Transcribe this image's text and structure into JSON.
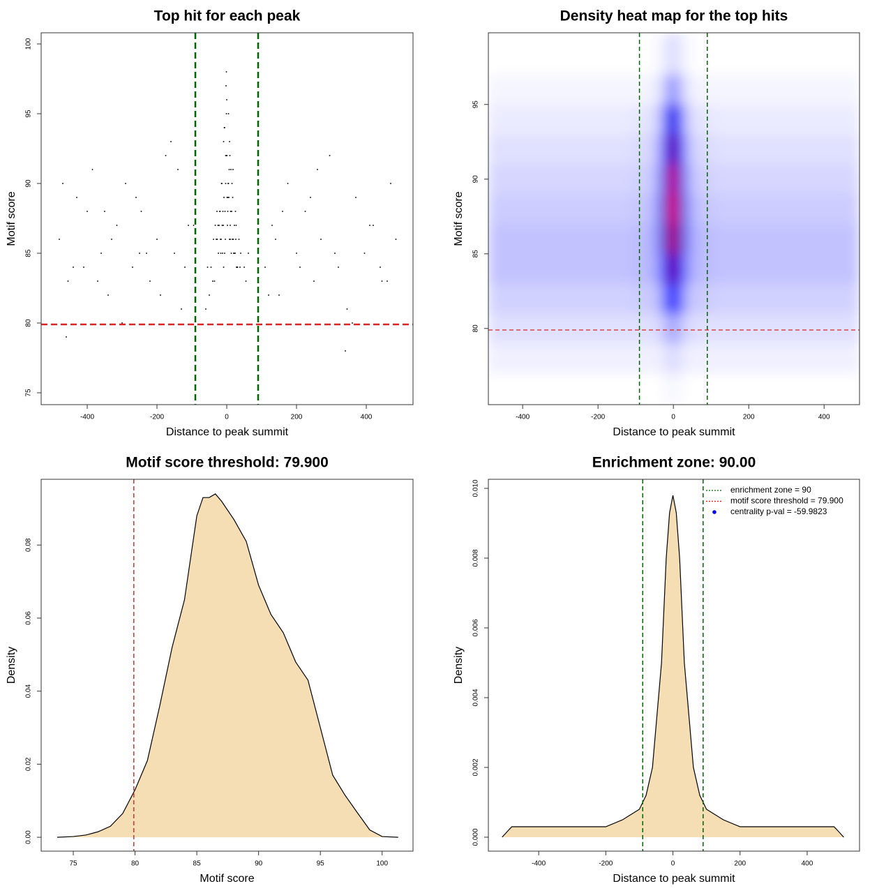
{
  "chart_data": [
    {
      "type": "scatter",
      "title": "Top hit for each peak",
      "x_label": "Distance to peak summit",
      "y_label": "Motif score",
      "color": "#000000",
      "x": [
        -480,
        -455,
        -430,
        -410,
        -385,
        -360,
        -340,
        -315,
        -290,
        -270,
        -245,
        -220,
        -200,
        -175,
        -150,
        -130,
        -110,
        -470,
        -440,
        -400,
        -370,
        -330,
        -300,
        -260,
        -230,
        -190,
        -160,
        -120,
        -95,
        -460,
        -350,
        -250,
        -140,
        110,
        130,
        150,
        175,
        200,
        225,
        250,
        270,
        295,
        320,
        345,
        370,
        395,
        420,
        445,
        470,
        485,
        120,
        160,
        210,
        260,
        310,
        360,
        410,
        460,
        140,
        240,
        340,
        440,
        -5,
        10,
        -15,
        20,
        0,
        -25,
        30,
        -8,
        12,
        -35,
        5,
        -18,
        25,
        -2,
        40,
        -45,
        15,
        -10,
        8,
        -30,
        3,
        -12,
        18,
        -22,
        28,
        -6,
        0,
        35,
        -40,
        14,
        -3,
        22,
        -17,
        9,
        -27,
        6,
        -50,
        50,
        -1,
        11,
        2,
        -9,
        16,
        -14,
        24,
        -20,
        7,
        -4,
        31,
        -33,
        1,
        13,
        -11,
        19,
        -7,
        4,
        -24,
        27,
        -16,
        0,
        55,
        -55,
        -60,
        62,
        -38,
        38,
        -28,
        17,
        -13,
        21,
        -19,
        26,
        5,
        -6,
        10,
        -1,
        3,
        -3,
        8,
        -9
      ],
      "values": [
        86,
        83,
        89,
        84,
        91,
        85,
        82,
        87,
        90,
        84,
        88,
        83,
        86,
        92,
        85,
        81,
        87,
        90,
        84,
        88,
        83,
        86,
        80,
        89,
        85,
        82,
        93,
        84,
        87,
        79,
        88,
        85,
        91,
        84,
        87,
        82,
        90,
        85,
        88,
        83,
        86,
        92,
        84,
        81,
        89,
        85,
        87,
        83,
        90,
        86,
        82,
        88,
        84,
        91,
        85,
        80,
        87,
        83,
        86,
        89,
        78,
        84,
        88,
        86,
        90,
        85,
        92,
        87,
        84,
        89,
        91,
        83,
        95,
        86,
        88,
        97,
        85,
        84,
        90,
        87,
        93,
        86,
        89,
        85,
        91,
        87,
        84,
        94,
        96,
        86,
        83,
        88,
        90,
        87,
        85,
        92,
        86,
        89,
        82,
        84,
        98,
        88,
        87,
        93,
        86,
        90,
        85,
        88,
        91,
        86,
        84,
        87,
        89,
        85,
        88,
        86,
        94,
        90,
        85,
        87,
        86,
        92,
        83,
        84,
        81,
        85,
        86,
        84,
        88,
        89,
        87,
        85,
        88,
        86,
        90,
        85,
        87,
        95,
        88,
        92,
        86,
        84
      ],
      "xlim": [
        -532,
        534
      ],
      "ylim": [
        74.15,
        100.8
      ],
      "xticks": [
        -400,
        -200,
        0,
        200,
        400
      ],
      "yticks": [
        75,
        80,
        85,
        90,
        95,
        100
      ],
      "reference_lines": [
        {
          "axis": "x",
          "value": -90,
          "color": "#006400",
          "dash": "9 5",
          "width": 2.5
        },
        {
          "axis": "x",
          "value": 90,
          "color": "#006400",
          "dash": "9 5",
          "width": 2.5
        },
        {
          "axis": "y",
          "value": 79.9,
          "color": "#dd2222",
          "dash": "9 5",
          "width": 2.5
        }
      ]
    },
    {
      "type": "heatmap",
      "title": "Density heat map for the top hits",
      "x_label": "Distance to peak summit",
      "y_label": "Motif score",
      "x": [
        -450,
        -350,
        -250,
        -150,
        -75,
        -40,
        -20,
        0,
        20,
        40,
        75,
        150,
        250,
        350,
        450
      ],
      "y": [
        76,
        78,
        80,
        82,
        84,
        86,
        88,
        90,
        92,
        94,
        96,
        98
      ],
      "z": [
        [
          0,
          0,
          0,
          0,
          0,
          0,
          0.01,
          0.02,
          0.01,
          0,
          0,
          0,
          0,
          0,
          0
        ],
        [
          0.03,
          0.03,
          0.03,
          0.03,
          0.03,
          0.03,
          0.05,
          0.08,
          0.05,
          0.03,
          0.03,
          0.03,
          0.03,
          0.03,
          0.03
        ],
        [
          0.06,
          0.06,
          0.06,
          0.06,
          0.06,
          0.07,
          0.12,
          0.2,
          0.12,
          0.07,
          0.06,
          0.06,
          0.06,
          0.06,
          0.06
        ],
        [
          0.09,
          0.09,
          0.09,
          0.09,
          0.1,
          0.12,
          0.3,
          0.45,
          0.3,
          0.12,
          0.1,
          0.09,
          0.09,
          0.09,
          0.09
        ],
        [
          0.12,
          0.12,
          0.12,
          0.12,
          0.13,
          0.18,
          0.5,
          0.75,
          0.5,
          0.18,
          0.13,
          0.12,
          0.12,
          0.12,
          0.12
        ],
        [
          0.12,
          0.12,
          0.12,
          0.12,
          0.13,
          0.2,
          0.6,
          0.9,
          0.6,
          0.2,
          0.13,
          0.12,
          0.12,
          0.12,
          0.12
        ],
        [
          0.1,
          0.1,
          0.1,
          0.1,
          0.11,
          0.18,
          0.6,
          1,
          0.6,
          0.18,
          0.11,
          0.1,
          0.1,
          0.1,
          0.1
        ],
        [
          0.08,
          0.08,
          0.08,
          0.08,
          0.09,
          0.15,
          0.55,
          0.95,
          0.55,
          0.15,
          0.09,
          0.08,
          0.08,
          0.08,
          0.08
        ],
        [
          0.06,
          0.06,
          0.06,
          0.06,
          0.07,
          0.12,
          0.45,
          0.75,
          0.45,
          0.12,
          0.07,
          0.06,
          0.06,
          0.06,
          0.06
        ],
        [
          0.04,
          0.04,
          0.04,
          0.04,
          0.05,
          0.08,
          0.3,
          0.55,
          0.3,
          0.08,
          0.05,
          0.04,
          0.04,
          0.04,
          0.04
        ],
        [
          0.02,
          0.02,
          0.02,
          0.02,
          0.02,
          0.04,
          0.12,
          0.25,
          0.12,
          0.04,
          0.02,
          0.02,
          0.02,
          0.02,
          0.02
        ],
        [
          0,
          0,
          0,
          0,
          0,
          0.01,
          0.04,
          0.08,
          0.04,
          0.01,
          0,
          0,
          0,
          0,
          0
        ]
      ],
      "colorscale": [
        "#ffffff",
        "#0000ff",
        "#ff0000"
      ],
      "xlim": [
        -491,
        494
      ],
      "ylim": [
        74.9,
        99.8
      ],
      "xticks": [
        -400,
        -200,
        0,
        200,
        400
      ],
      "yticks": [
        80,
        85,
        90,
        95
      ],
      "reference_lines": [
        {
          "axis": "x",
          "value": -90,
          "color": "#006400",
          "dash": "6 4",
          "width": 1.5
        },
        {
          "axis": "x",
          "value": 90,
          "color": "#006400",
          "dash": "6 4",
          "width": 1.5
        },
        {
          "axis": "y",
          "value": 79.9,
          "color": "#dd2222",
          "dash": "6 4",
          "width": 1.2
        }
      ]
    },
    {
      "type": "area",
      "title": "Motif score threshold: 79.900",
      "x_label": "Motif score",
      "y_label": "Density",
      "color": "#f5deb3",
      "x": [
        73.7,
        75,
        76,
        77,
        78,
        79,
        80,
        81,
        82,
        83,
        84,
        85,
        85.5,
        86,
        86.5,
        87,
        88,
        89,
        90,
        91,
        92,
        93,
        94,
        95,
        96,
        97,
        98,
        99,
        100,
        101.3
      ],
      "values": [
        0,
        0.0002,
        0.0006,
        0.0015,
        0.003,
        0.0065,
        0.013,
        0.021,
        0.036,
        0.052,
        0.065,
        0.088,
        0.093,
        0.093,
        0.094,
        0.092,
        0.087,
        0.081,
        0.069,
        0.061,
        0.056,
        0.048,
        0.043,
        0.03,
        0.017,
        0.0115,
        0.0067,
        0.002,
        0.0002,
        0
      ],
      "xlim": [
        72.4,
        102.5
      ],
      "ylim": [
        -0.0038,
        0.098
      ],
      "xticks": [
        75,
        80,
        85,
        90,
        95,
        100
      ],
      "yticks": [
        {
          "value": 0,
          "label": "0.00"
        },
        0.02,
        0.04,
        0.06,
        0.08
      ],
      "reference_lines": [
        {
          "axis": "x",
          "value": 79.9,
          "color": "#cc3333",
          "dash": "6 4",
          "width": 1.5
        }
      ]
    },
    {
      "type": "area",
      "title": "Enrichment zone: 90.00",
      "x_label": "Distance to peak summit",
      "y_label": "Density",
      "color": "#f5deb3",
      "x": [
        -509,
        -490,
        -480,
        -400,
        -300,
        -200,
        -150,
        -100,
        -80,
        -61,
        -34,
        -20,
        -10,
        0,
        10,
        20,
        34,
        61,
        80,
        100,
        150,
        200,
        300,
        400,
        480,
        490,
        509
      ],
      "values": [
        0,
        0.0002,
        0.0003,
        0.0003,
        0.0003,
        0.0003,
        0.0005,
        0.0008,
        0.0012,
        0.002,
        0.005,
        0.008,
        0.0093,
        0.0098,
        0.0093,
        0.008,
        0.005,
        0.002,
        0.0012,
        0.0008,
        0.0005,
        0.0003,
        0.0003,
        0.0003,
        0.0003,
        0.0002,
        0
      ],
      "xlim": [
        -550,
        556
      ],
      "ylim": [
        -0.0004,
        0.01026
      ],
      "xticks": [
        -400,
        -200,
        0,
        200,
        400
      ],
      "yticks": [
        {
          "value": 0,
          "label": "0.000"
        },
        0.002,
        0.004,
        0.006,
        0.008,
        {
          "value": 0.01,
          "label": "0.010"
        }
      ],
      "reference_lines": [
        {
          "axis": "x",
          "value": -90,
          "color": "#006400",
          "dash": "6 4",
          "width": 1.5
        },
        {
          "axis": "x",
          "value": 90,
          "color": "#006400",
          "dash": "6 4",
          "width": 1.5
        }
      ],
      "legend": [
        {
          "label": "enrichment zone = 90",
          "color": "#006400",
          "style": "dotted"
        },
        {
          "label": "motif score threshold = 79.900",
          "color": "#ff0000",
          "style": "dotted"
        },
        {
          "label": "centrality p-val = -59.9823",
          "color": "#0000ff",
          "style": "dot"
        }
      ],
      "legend_position": "top-right"
    }
  ]
}
